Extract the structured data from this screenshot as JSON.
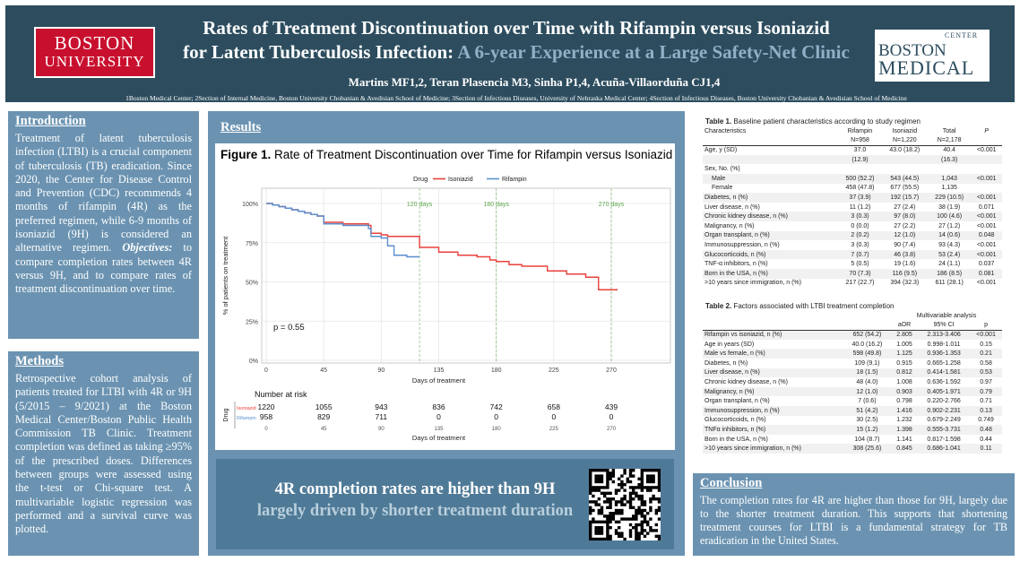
{
  "header": {
    "left_logo": {
      "line1": "BOSTON",
      "line2": "UNIVERSITY"
    },
    "title_line1": "Rates of Treatment Discontinuation over Time with Rifampin versus Isoniazid",
    "title_line2_prefix": "for Latent Tuberculosis Infection: ",
    "title_line2_accent": "A 6-year Experience at a Large Safety-Net Clinic",
    "authors": "Martins MF1,2, Teran Plasencia M3, Sinha P1,4, Acuña-Villaorduña CJ1,4",
    "affiliations": "1Boston Medical Center; 2Section of Internal Medicine, Boston University Chobanian & Avedisian School of Medicine; 3Section of Infectious Diseases, University of Nebraska Medical Center; 4Section of Infectious Diseases, Boston University Chobanian & Avedisian School of Medicine",
    "right_logo": {
      "line1": "BOSTON",
      "line2": "MEDICAL",
      "line3": "CENTER"
    }
  },
  "introduction": {
    "heading": "Introduction",
    "body_before": "Treatment of latent tuberculosis infection (LTBI) is a crucial component of tuberculosis (TB) eradication. Since 2020, the Center for Disease Control and Prevention (CDC) recommends 4 months of rifampin (4R) as the preferred regimen, while 6-9 months of isoniazid (9H) is considered an alternative regimen. ",
    "objectives_label": "Objectives:",
    "body_after": " to compare completion rates between 4R versus 9H, and to compare rates of treatment discontinuation over time."
  },
  "methods": {
    "heading": "Methods",
    "body": "Retrospective cohort analysis of patients treated for LTBI with 4R or 9H (5/2015 – 9/2021) at the Boston Medical Center/Boston Public Health Commission TB Clinic. Treatment completion was defined as taking ≥95% of the prescribed doses. Differences between groups were assessed using the t-test or Chi-square test. A multivariable logistic regression was performed and a survival curve was plotted."
  },
  "results": {
    "heading": "Results",
    "figure_label": "Figure 1.",
    "figure_title": " Rate of Treatment Discontinuation over Time for Rifampin versus Isoniazid",
    "finding_line1": "4R completion rates are higher than 9H",
    "finding_line2": "largely driven by shorter treatment duration"
  },
  "chart_data": {
    "type": "line",
    "title": "Rate of Treatment Discontinuation over Time for Rifampin versus Isoniazid",
    "xlabel": "Days of treatment",
    "ylabel": "% of patients on treatment",
    "legend_title": "Drug",
    "legend_position": "top",
    "xlim": [
      0,
      280
    ],
    "ylim": [
      0,
      1
    ],
    "xticks": [
      0,
      45,
      90,
      135,
      180,
      225,
      270
    ],
    "yticks": [
      {
        "v": 0,
        "label": "0%"
      },
      {
        "v": 0.25,
        "label": "25%"
      },
      {
        "v": 0.5,
        "label": "50%"
      },
      {
        "v": 0.75,
        "label": "75%"
      },
      {
        "v": 1.0,
        "label": "100%"
      }
    ],
    "grid": true,
    "p_value_label": "p = 0.55",
    "reference_lines": [
      {
        "x": 120,
        "label": "120 days"
      },
      {
        "x": 180,
        "label": "180 days"
      },
      {
        "x": 270,
        "label": "270 days"
      }
    ],
    "series": [
      {
        "name": "Isoniazid",
        "color": "#e8413c",
        "x": [
          0,
          5,
          10,
          15,
          20,
          25,
          30,
          35,
          40,
          45,
          60,
          80,
          82,
          90,
          95,
          110,
          120,
          135,
          150,
          165,
          175,
          180,
          190,
          200,
          220,
          235,
          250,
          260,
          270,
          280
        ],
        "y": [
          1.0,
          0.99,
          0.98,
          0.97,
          0.96,
          0.95,
          0.94,
          0.93,
          0.92,
          0.88,
          0.87,
          0.86,
          0.81,
          0.8,
          0.79,
          0.79,
          0.72,
          0.69,
          0.67,
          0.66,
          0.64,
          0.63,
          0.61,
          0.6,
          0.57,
          0.55,
          0.53,
          0.45,
          0.45,
          0.45
        ]
      },
      {
        "name": "Rifampin",
        "color": "#5a8fd0",
        "x": [
          0,
          5,
          10,
          15,
          20,
          25,
          30,
          35,
          40,
          45,
          60,
          80,
          82,
          90,
          95,
          100,
          110,
          115,
          120
        ],
        "y": [
          1.0,
          0.99,
          0.98,
          0.97,
          0.96,
          0.95,
          0.94,
          0.93,
          0.92,
          0.87,
          0.86,
          0.84,
          0.79,
          0.78,
          0.73,
          0.67,
          0.66,
          0.66,
          0.66
        ]
      }
    ],
    "risk_table": {
      "title": "Number at risk",
      "row_label": "Drug",
      "times": [
        0,
        45,
        90,
        135,
        180,
        225,
        270
      ],
      "rows": [
        {
          "name": "Isoniazid",
          "values": [
            1220,
            1055,
            943,
            836,
            742,
            658,
            439
          ]
        },
        {
          "name": "Rifampin",
          "values": [
            958,
            829,
            711,
            0,
            0,
            0,
            0
          ]
        }
      ],
      "xlabel": "Days of treatment"
    }
  },
  "table1": {
    "label": "Table 1.",
    "caption": " Baseline patient characteristics according to study regimen",
    "header": [
      [
        "Characteristics",
        "Rifampin",
        "Isoniazid",
        "Total",
        "P"
      ],
      [
        "",
        "N=958",
        "N=1,220",
        "N=2,178",
        ""
      ]
    ],
    "rows": [
      [
        "Age, y (SD)",
        "37.0",
        "43.0 (18.2)",
        "40.4",
        "<0.001"
      ],
      [
        "",
        "(12.9)",
        "",
        "(16.3)",
        ""
      ],
      [
        "Sex, No. (%)",
        "",
        "",
        "",
        ""
      ],
      [
        "Male",
        "500 (52.2)",
        "543 (44.5)",
        "1,043",
        "<0.001"
      ],
      [
        "Female",
        "458 (47.8)",
        "677 (55.5)",
        "1,135",
        ""
      ],
      [
        "Diabetes, n (%)",
        "37 (3.9)",
        "192 (15.7)",
        "229 (10.5)",
        "<0.001"
      ],
      [
        "Liver disease, n (%)",
        "11 (1.2)",
        "27 (2.4)",
        "38 (1.9)",
        "0.071"
      ],
      [
        "Chronic kidney disease, n (%)",
        "3 (0.3)",
        "97 (8.0)",
        "100 (4.6)",
        "<0.001"
      ],
      [
        "Malignancy, n (%)",
        "0 (0.0)",
        "27 (2.2)",
        "27 (1.2)",
        "<0.001"
      ],
      [
        "Organ transplant, n (%)",
        "2 (0.2)",
        "12 (1.0)",
        "14 (0.6)",
        "0.048"
      ],
      [
        "Immunosuppression, n (%)",
        "3 (0.3)",
        "90 (7.4)",
        "93 (4.3)",
        "<0.001"
      ],
      [
        "Glucocorticoids, n (%)",
        "7 (0.7)",
        "46 (3.8)",
        "53 (2.4)",
        "<0.001"
      ],
      [
        "TNF-α inhibitors, n (%)",
        "5 (0.5)",
        "19 (1.6)",
        "24 (1.1)",
        "0.037"
      ],
      [
        "Born in the USA, n (%)",
        "70 (7.3)",
        "116 (9.5)",
        "186 (8.5)",
        "0.081"
      ],
      [
        ">10 years since immigration, n (%)",
        "217 (22.7)",
        "394 (32.3)",
        "611 (28.1)",
        "<0.001"
      ]
    ]
  },
  "table2": {
    "label": "Table 2.",
    "caption": " Factors associated with LTBI treatment completion",
    "group_header": "Multivariable analysis",
    "header": [
      "",
      "",
      "aOR",
      "95% CI",
      "p"
    ],
    "rows": [
      [
        "Rifampin vs isoniazid, n (%)",
        "652 (54.2)",
        "2.805",
        "2.313-3.406",
        "<0.001"
      ],
      [
        "Age in years (SD)",
        "40.0 (16.2)",
        "1.005",
        "0.998-1.011",
        "0.15"
      ],
      [
        "Male vs female, n (%)",
        "598 (49.8)",
        "1.125",
        "0.936-1.353",
        "0.21"
      ],
      [
        "Diabetes, n (%)",
        "109 (9.1)",
        "0.915",
        "0.665-1.258",
        "0.58"
      ],
      [
        "Liver disease, n (%)",
        "18 (1.5)",
        "0.812",
        "0.414-1.581",
        "0.53"
      ],
      [
        "Chronic kidney disease, n (%)",
        "48 (4.0)",
        "1.008",
        "0.636-1.592",
        "0.97"
      ],
      [
        "Malignancy, n (%)",
        "12 (1.0)",
        "0.903",
        "0.405-1.971",
        "0.79"
      ],
      [
        "Organ transplant, n (%)",
        "7 (0.6)",
        "0.798",
        "0.220-2.766",
        "0.71"
      ],
      [
        "Immunosuppression, n (%)",
        "51 (4.2)",
        "1.416",
        "0.902-2.231",
        "0.13"
      ],
      [
        "Glucocorticoids, n (%)",
        "30 (2.5)",
        "1.232",
        "0.679-2.249",
        "0.749"
      ],
      [
        "TNFα inhibitors, n (%)",
        "15 (1.2)",
        "1.398",
        "0.555-3.731",
        "0.48"
      ],
      [
        "Born in the USA, n (%)",
        "104 (8.7)",
        "1.141",
        "0.817-1.598",
        "0.44"
      ],
      [
        ">10 years since immigration, n (%)",
        "308 (25.6)",
        "0.845",
        "0.686-1.041",
        "0.11"
      ]
    ]
  },
  "conclusion": {
    "heading": "Conclusion",
    "body": "The completion rates for 4R are higher than those for 9H, largely due to the shorter treatment duration. This supports that shortening treatment courses for LTBI is a fundamental strategy for TB eradication in the United States."
  }
}
